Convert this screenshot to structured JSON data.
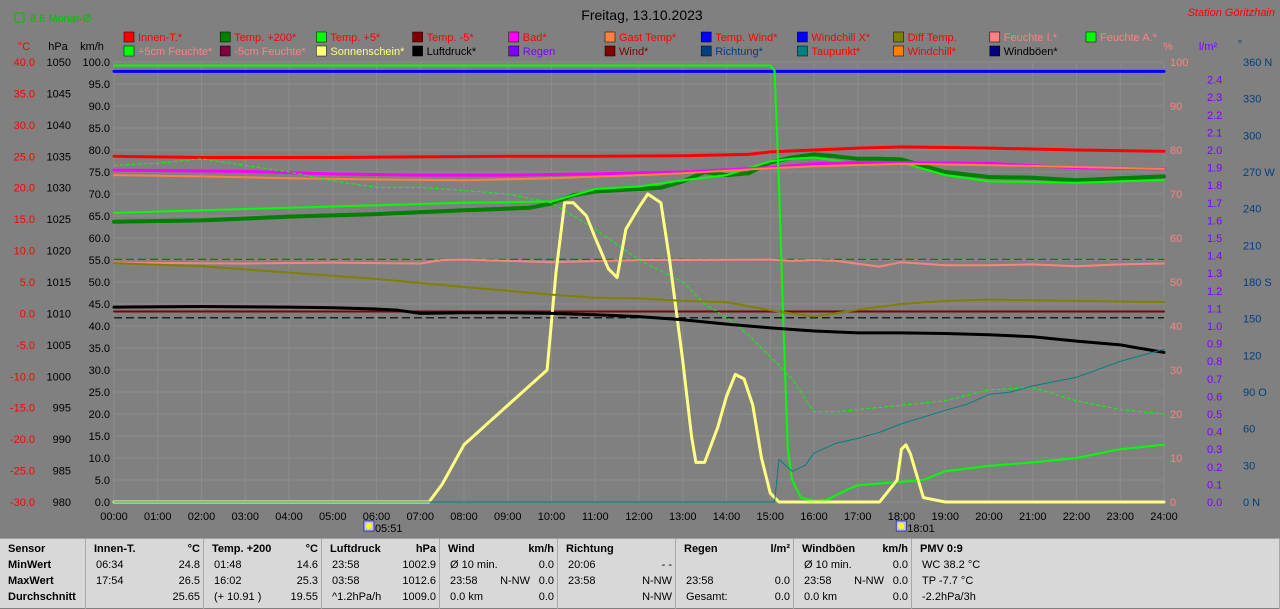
{
  "title": "Freitag, 13.10.2023",
  "station": "Station Göritzhain",
  "monthly_avg": "8.6 Monat-Ø",
  "colors": {
    "background": "#808080",
    "station": "#ff0000",
    "innen": "#ff0000",
    "temp200": "#008000",
    "temp5": "#00ff00",
    "tempminus5": "#800000",
    "bad": "#ff00ff",
    "gast": "#ff8040",
    "tempwind": "#0000ff",
    "windchillx": "#0000ff",
    "difftemp": "#808000",
    "feuchtei": "#ff8080",
    "feuchtea": "#00ff00",
    "feuchte5": "#00ff00",
    "feuchteminus5": "#800040",
    "sonne": "#ffff80",
    "luftdruck": "#000000",
    "regen": "#8000ff",
    "wind": "#800000",
    "richtung": "#004080",
    "taupunkt": "#008080",
    "windchill": "#ff8000",
    "windboeen": "#000080",
    "hpa_axis": "#000000",
    "kmh_axis": "#000000",
    "pct_axis": "#ff8080",
    "lm2_axis": "#8000ff",
    "deg_axis": "#004080"
  },
  "legend": {
    "row1": [
      {
        "label": "Innen-T.*",
        "color": "#ff0000",
        "text_color": "#ff0000"
      },
      {
        "label": "Temp. +200*",
        "color": "#008000",
        "text_color": "#ff0000"
      },
      {
        "label": "Temp. +5*",
        "color": "#00ff00",
        "text_color": "#ff0000"
      },
      {
        "label": "Temp. -5*",
        "color": "#800000",
        "text_color": "#ff0000"
      },
      {
        "label": "Bad*",
        "color": "#ff00ff",
        "text_color": "#ff0000"
      },
      {
        "label": "Gast Temp*",
        "color": "#ff8040",
        "text_color": "#ff0000"
      },
      {
        "label": "Temp. Wind*",
        "color": "#0000ff",
        "text_color": "#ff0000"
      },
      {
        "label": "Windchill X*",
        "color": "#0000ff",
        "text_color": "#ff0000"
      },
      {
        "label": "Diff Temp.",
        "color": "#808000",
        "text_color": "#ff0000"
      },
      {
        "label": "Feuchte I.*",
        "color": "#ff8080",
        "text_color": "#ff8080"
      },
      {
        "label": "Feuchte A.*",
        "color": "#00ff00",
        "text_color": "#ff8080"
      }
    ],
    "row2": [
      {
        "label": "+5cm Feuchte*",
        "color": "#00ff00",
        "text_color": "#ff8080"
      },
      {
        "label": "-5cm Feuchte*",
        "color": "#800040",
        "text_color": "#ff8080"
      },
      {
        "label": "Sonnenschein*",
        "color": "#ffff80",
        "text_color": "#ffff80"
      },
      {
        "label": "Luftdruck*",
        "color": "#000000",
        "text_color": "#000000"
      },
      {
        "label": "Regen",
        "color": "#8000ff",
        "text_color": "#8000ff"
      },
      {
        "label": "Wind*",
        "color": "#800000",
        "text_color": "#800000"
      },
      {
        "label": "Richtung*",
        "color": "#004080",
        "text_color": "#004080"
      },
      {
        "label": "Taupunkt*",
        "color": "#008080",
        "text_color": "#ff0000"
      },
      {
        "label": "Windchill*",
        "color": "#ff8000",
        "text_color": "#ff0000"
      },
      {
        "label": "Windböen*",
        "color": "#000080",
        "text_color": "#000000"
      }
    ]
  },
  "axes": {
    "temp": {
      "unit": "°C",
      "ticks": [
        "40.0",
        "35.0",
        "30.0",
        "25.0",
        "20.0",
        "15.0",
        "10.0",
        "5.0",
        "0.0",
        "-5.0",
        "-10.0",
        "-15.0",
        "-20.0",
        "-25.0",
        "-30.0"
      ]
    },
    "hpa": {
      "unit": "hPa",
      "ticks": [
        "1050",
        "1045",
        "1040",
        "1035",
        "1030",
        "1025",
        "1020",
        "1015",
        "1010",
        "1005",
        "1000",
        "995",
        "990",
        "985",
        "980"
      ]
    },
    "kmh": {
      "unit": "km/h",
      "ticks": [
        "100.0",
        "95.0",
        "90.0",
        "85.0",
        "80.0",
        "75.0",
        "70.0",
        "65.0",
        "60.0",
        "55.0",
        "50.0",
        "45.0",
        "40.0",
        "35.0",
        "30.0",
        "25.0",
        "20.0",
        "15.0",
        "10.0",
        "5.0",
        "0.0"
      ]
    },
    "pct": {
      "unit": "%",
      "ticks": [
        "100",
        "90",
        "80",
        "70",
        "60",
        "50",
        "40",
        "30",
        "20",
        "10",
        "0"
      ]
    },
    "lm2": {
      "unit": "l/m²",
      "ticks": [
        "2.4",
        "2.3",
        "2.2",
        "2.1",
        "2.0",
        "1.9",
        "1.8",
        "1.7",
        "1.6",
        "1.5",
        "1.4",
        "1.3",
        "1.2",
        "1.1",
        "1.0",
        "0.9",
        "0.8",
        "0.7",
        "0.6",
        "0.5",
        "0.4",
        "0.3",
        "0.2",
        "0.1",
        "0.0"
      ]
    },
    "deg": {
      "unit": "°",
      "ticks": [
        "360 N",
        "330",
        "300",
        "270 W",
        "240",
        "210",
        "180 S",
        "150",
        "120",
        "90 O",
        "60",
        "30",
        "0 N"
      ]
    },
    "x": {
      "ticks": [
        "00:00",
        "01:00",
        "02:00",
        "03:00",
        "04:00",
        "05:00",
        "06:00",
        "07:00",
        "08:00",
        "09:00",
        "10:00",
        "11:00",
        "12:00",
        "13:00",
        "14:00",
        "15:00",
        "16:00",
        "17:00",
        "18:00",
        "19:00",
        "20:00",
        "21:00",
        "22:00",
        "23:00",
        "24:00"
      ]
    },
    "sunrise": "05:51",
    "sunset": "18:01"
  },
  "chart_data": {
    "type": "line",
    "title": "Freitag, 13.10.2023",
    "x_range": [
      "00:00",
      "24:00"
    ],
    "temp_axis_range_c": [
      -30,
      40
    ],
    "pressure_axis_range_hpa": [
      980,
      1050
    ],
    "wind_axis_range_kmh": [
      0,
      100
    ],
    "humidity_axis_range_pct": [
      0,
      100
    ],
    "rain_axis_range_lm2": [
      0,
      2.5
    ],
    "direction_axis_range_deg": [
      0,
      360
    ],
    "series": [
      {
        "name": "Innen-T.*",
        "axis": "temp",
        "color": "#ff0000",
        "width": 3,
        "x": [
          0,
          2,
          5,
          7,
          9,
          11,
          13,
          14.5,
          15,
          16,
          17,
          18,
          20,
          22,
          24
        ],
        "y": [
          25.0,
          24.8,
          24.8,
          24.9,
          25.0,
          25.0,
          25.1,
          25.3,
          25.7,
          26.0,
          26.3,
          26.5,
          26.3,
          26.0,
          25.8
        ]
      },
      {
        "name": "Temp. +200*",
        "axis": "temp",
        "color": "#008000",
        "width": 4,
        "x": [
          0,
          2,
          4,
          6,
          8,
          9.5,
          10,
          10.5,
          11,
          12,
          12.5,
          13,
          13.5,
          14,
          14.5,
          15,
          15.5,
          16,
          16.5,
          17,
          17.5,
          18,
          18.5,
          19,
          20,
          21,
          22,
          23,
          24
        ],
        "y": [
          14.6,
          14.8,
          15.4,
          15.8,
          16.4,
          16.8,
          17.5,
          18.8,
          19.4,
          19.8,
          20.0,
          21.0,
          22.5,
          22.0,
          22.3,
          24.0,
          24.8,
          25.3,
          25.0,
          24.6,
          24.6,
          24.5,
          23.5,
          22.5,
          21.7,
          21.6,
          21.2,
          21.5,
          21.8
        ]
      },
      {
        "name": "Temp. +5*",
        "axis": "temp",
        "color": "#00ff00",
        "width": 2,
        "x": [
          0,
          2,
          4,
          6,
          8,
          10,
          11,
          12,
          13,
          14,
          15,
          15.5,
          16,
          16.5,
          17,
          18,
          19,
          20,
          22,
          23,
          24
        ],
        "y": [
          16.0,
          16.4,
          16.8,
          17.2,
          17.6,
          17.8,
          19.8,
          20.2,
          21.2,
          22.0,
          24.2,
          24.6,
          24.8,
          24.3,
          23.8,
          24.0,
          22.0,
          21.0,
          20.8,
          21.0,
          21.2
        ]
      },
      {
        "name": "Temp. -5*",
        "axis": "temp",
        "color": "#800000",
        "width": 2,
        "x": [
          0,
          24
        ],
        "y": [
          0.3,
          0.3
        ]
      },
      {
        "name": "Bad*",
        "axis": "temp",
        "color": "#ff00ff",
        "width": 3,
        "x": [
          0,
          3,
          5,
          7,
          9,
          11,
          13,
          15,
          16,
          17,
          18,
          20,
          21,
          22,
          24
        ],
        "y": [
          22.8,
          22.6,
          22.2,
          22.0,
          22.0,
          22.2,
          22.5,
          23.2,
          23.8,
          24.0,
          24.0,
          23.9,
          23.5,
          23.2,
          23.0
        ]
      },
      {
        "name": "Gast Temp*",
        "axis": "temp",
        "color": "#ff8040",
        "width": 2,
        "x": [
          0,
          2,
          4,
          6,
          8,
          10,
          12,
          13,
          14,
          15,
          16,
          17,
          18,
          20,
          22,
          24
        ],
        "y": [
          22.0,
          21.8,
          21.5,
          21.3,
          21.2,
          21.5,
          22.0,
          22.3,
          22.7,
          23.1,
          23.4,
          23.6,
          23.8,
          23.6,
          23.3,
          23.0
        ]
      },
      {
        "name": "Temp. Wind*",
        "axis": "temp",
        "color": "#0000ff",
        "width": 3,
        "x": [
          0,
          24
        ],
        "y": [
          38.5,
          38.5
        ]
      },
      {
        "name": "Feuchte I.*",
        "axis": "pct",
        "color": "#ff8080",
        "width": 2,
        "x": [
          0,
          3,
          5,
          6,
          7,
          7.5,
          8,
          10,
          12,
          13,
          15,
          15.5,
          16,
          16.5,
          17.5,
          18,
          19,
          20,
          21,
          22,
          23,
          24
        ],
        "y": [
          54.4,
          54.2,
          54.4,
          54.3,
          54.2,
          55.0,
          55.1,
          54.5,
          55.0,
          55.0,
          55.1,
          54.8,
          55.0,
          54.8,
          53.5,
          54.5,
          53.8,
          53.8,
          54.0,
          53.6,
          54.0,
          54.2
        ]
      },
      {
        "name": "Feuchte A.*",
        "axis": "pct",
        "color": "#00ff00",
        "width": 1,
        "dash": "3,3",
        "x": [
          0,
          1,
          2,
          4,
          5,
          6,
          7,
          8,
          9,
          10,
          11,
          12,
          13,
          13.5,
          14,
          14.5,
          15,
          15.5,
          16,
          16.5,
          17,
          18,
          19,
          20,
          21,
          22,
          23,
          24
        ],
        "y": [
          76.5,
          77.0,
          78.0,
          75.0,
          73.0,
          71.5,
          71.5,
          70.8,
          70.0,
          68.0,
          62.0,
          55.0,
          50.0,
          45.0,
          42.0,
          38.0,
          33.0,
          28.0,
          20.5,
          20.5,
          21.0,
          22.0,
          23.0,
          25.5,
          26.0,
          23.0,
          21.0,
          20.0
        ]
      },
      {
        "name": "+5cm Feuchte*",
        "axis": "pct",
        "color": "#00ff00",
        "width": 2,
        "x": [
          0,
          15,
          15.1,
          15.2,
          15.3,
          15.4,
          15.5,
          15.7,
          16.0,
          16.3,
          16.5,
          16.8,
          17.0,
          17.5,
          18,
          18.5,
          19,
          20,
          21,
          22,
          23,
          24
        ],
        "y": [
          99.2,
          99.2,
          98.0,
          72.0,
          40.0,
          12.0,
          5.0,
          1.0,
          0.3,
          0.5,
          1.5,
          3.0,
          3.8,
          4.2,
          4.6,
          5.0,
          7.0,
          8.2,
          9.0,
          10.0,
          12.0,
          13.0
        ]
      },
      {
        "name": "Sonnenschein*",
        "axis": "pct",
        "color": "#ffff80",
        "width": 3,
        "x": [
          0,
          7.2,
          7.5,
          8,
          9,
          9.9,
          10.1,
          10.3,
          10.5,
          10.8,
          11,
          11.3,
          11.5,
          11.7,
          12,
          12.2,
          12.5,
          12.7,
          13,
          13.2,
          13.3,
          13.5,
          13.8,
          14,
          14.2,
          14.4,
          14.6,
          14.8,
          15,
          15.2,
          15.5,
          16,
          17.5,
          17.9,
          18,
          18.1,
          18.2,
          18.5,
          19,
          24
        ],
        "y": [
          0,
          0,
          4,
          13,
          22,
          30,
          52,
          68,
          68,
          65,
          60,
          53,
          51,
          62,
          67,
          70,
          68,
          55,
          32,
          15,
          9,
          9,
          17,
          24,
          29,
          28,
          22,
          10,
          2,
          0,
          0,
          0,
          0,
          5,
          12,
          13,
          11,
          1,
          0,
          0
        ]
      },
      {
        "name": "Luftdruck*",
        "axis": "hpa",
        "color": "#000000",
        "width": 3,
        "x": [
          0,
          2,
          4,
          5,
          6,
          6.5,
          7,
          8,
          9,
          10,
          11,
          12,
          13,
          14,
          15,
          16,
          17,
          18,
          19,
          20,
          21,
          22,
          23,
          24
        ],
        "y": [
          1011.0,
          1011.1,
          1011.0,
          1010.9,
          1010.7,
          1010.5,
          1010.0,
          1010.1,
          1010.1,
          1010.0,
          1009.8,
          1009.5,
          1009.0,
          1008.3,
          1007.7,
          1007.2,
          1006.9,
          1006.9,
          1006.8,
          1006.6,
          1006.3,
          1005.6,
          1005.0,
          1003.8
        ]
      },
      {
        "name": "Taupunkt*",
        "axis": "deg",
        "color": "#008080",
        "width": 1,
        "x": [
          0,
          15.1,
          15.2,
          15.5,
          15.8,
          16,
          16.5,
          17,
          17.5,
          18,
          19,
          19.5,
          20,
          20.5,
          21,
          22,
          23,
          24
        ],
        "y": [
          0,
          0,
          35,
          25,
          30,
          40,
          48,
          52,
          57,
          64,
          75,
          80,
          88,
          90,
          95,
          102,
          115,
          125
        ]
      },
      {
        "name": "Diff Temp.",
        "axis": "temp",
        "color": "#808000",
        "width": 2,
        "x": [
          0,
          2,
          4,
          6,
          8,
          10,
          11,
          12,
          13,
          14,
          15,
          16,
          17,
          18,
          19,
          20,
          22,
          24
        ],
        "y": [
          8.0,
          7.5,
          6.5,
          5.5,
          4.2,
          3.0,
          2.5,
          2.4,
          2.0,
          1.8,
          0.5,
          -0.5,
          0.6,
          1.5,
          2.0,
          2.2,
          2.0,
          1.8
        ]
      }
    ],
    "reference_lines": [
      {
        "axis": "temp",
        "value": 8.6,
        "color": "#008000",
        "dash": "8,4",
        "label": "8.6 Monat-Ø"
      },
      {
        "axis": "temp",
        "value": -0.7,
        "color": "#000000",
        "dash": "8,4"
      }
    ],
    "grid": true
  },
  "summary": {
    "row_labels": [
      "Sensor",
      "MinWert",
      "MaxWert",
      "Durchschnitt"
    ],
    "sections": [
      {
        "title": "Innen-T.",
        "unit": "°C",
        "rows": [
          [
            "06:34",
            "",
            "24.8"
          ],
          [
            "17:54",
            "",
            "26.5"
          ],
          [
            "",
            "",
            "25.65"
          ]
        ]
      },
      {
        "title": "Temp. +200",
        "unit": "°C",
        "rows": [
          [
            "01:48",
            "",
            "14.6"
          ],
          [
            "16:02",
            "",
            "25.3"
          ],
          [
            "(+ 10.91 )",
            "",
            "19.55"
          ]
        ]
      },
      {
        "title": "Luftdruck",
        "unit": "hPa",
        "rows": [
          [
            "23:58",
            "",
            "1002.9"
          ],
          [
            "03:58",
            "",
            "1012.6"
          ],
          [
            "^1.2hPa/h",
            "",
            "1009.0"
          ]
        ]
      },
      {
        "title": "Wind",
        "unit": "km/h",
        "rows": [
          [
            "Ø 10 min.",
            "",
            "0.0"
          ],
          [
            "23:58",
            "N-NW",
            "0.0"
          ],
          [
            "0.0 km",
            "",
            "0.0"
          ]
        ]
      },
      {
        "title": "Richtung",
        "unit": "",
        "rows": [
          [
            "20:06",
            "",
            "- -"
          ],
          [
            "23:58",
            "",
            "N-NW"
          ],
          [
            "",
            "",
            "N-NW"
          ]
        ]
      },
      {
        "title": "Regen",
        "unit": "l/m²",
        "rows": [
          [
            "",
            "",
            ""
          ],
          [
            "23:58",
            "",
            "0.0"
          ],
          [
            "Gesamt:",
            "",
            "0.0"
          ]
        ]
      },
      {
        "title": "Windböen",
        "unit": "km/h",
        "rows": [
          [
            "Ø 10 min.",
            "",
            "0.0"
          ],
          [
            "23:58",
            "N-NW",
            "0.0"
          ],
          [
            "0.0 km",
            "",
            "0.0"
          ]
        ]
      },
      {
        "title": "PMV 0:9",
        "unit": "",
        "rows": [
          [
            "WC 38.2 °C",
            "",
            ""
          ],
          [
            "TP -7.7 °C",
            "",
            ""
          ],
          [
            "-2.2hPa/3h",
            "",
            ""
          ]
        ]
      }
    ]
  }
}
